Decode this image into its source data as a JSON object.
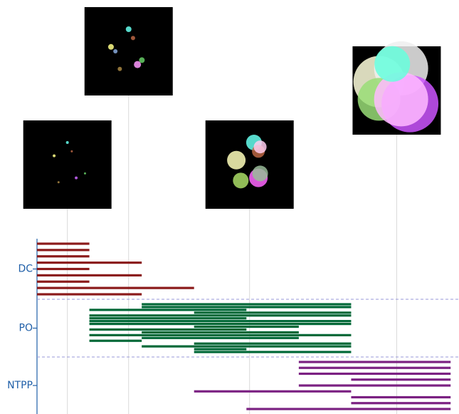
{
  "chart_data": {
    "type": "interval",
    "xlim": [
      0,
      8.06
    ],
    "snapshots": [
      0.58,
      1.75,
      4.06,
      6.87
    ],
    "series": [
      {
        "name": "DC",
        "color": "#8b1a1a",
        "intervals": [
          [
            0,
            1
          ],
          [
            0,
            1
          ],
          [
            0,
            1
          ],
          [
            0,
            2
          ],
          [
            0,
            1
          ],
          [
            0,
            2
          ],
          [
            0,
            1
          ],
          [
            0,
            3
          ],
          [
            0,
            2
          ]
        ]
      },
      {
        "name": "PO",
        "color": "#006837",
        "intervals": [
          [
            2,
            6
          ],
          [
            2,
            6
          ],
          [
            1,
            4
          ],
          [
            3,
            6
          ],
          [
            1,
            6
          ],
          [
            1,
            4
          ],
          [
            1,
            6
          ],
          [
            1,
            6
          ],
          [
            3,
            5
          ],
          [
            1,
            4
          ],
          [
            2,
            5
          ],
          [
            1,
            6
          ],
          [
            2,
            5
          ],
          [
            1,
            2
          ],
          [
            3,
            6
          ],
          [
            2,
            6
          ],
          [
            3,
            4
          ],
          [
            3,
            6
          ]
        ]
      },
      {
        "name": "NTPP",
        "color": "#7b2182",
        "intervals": [
          [
            5,
            7.9
          ],
          [
            5,
            7.9
          ],
          [
            5,
            7.9
          ],
          [
            6,
            7.9
          ],
          [
            5,
            7.9
          ],
          [
            3,
            6
          ],
          [
            6,
            7.9
          ],
          [
            6,
            7.9
          ],
          [
            4,
            7.9
          ]
        ]
      }
    ]
  }
}
